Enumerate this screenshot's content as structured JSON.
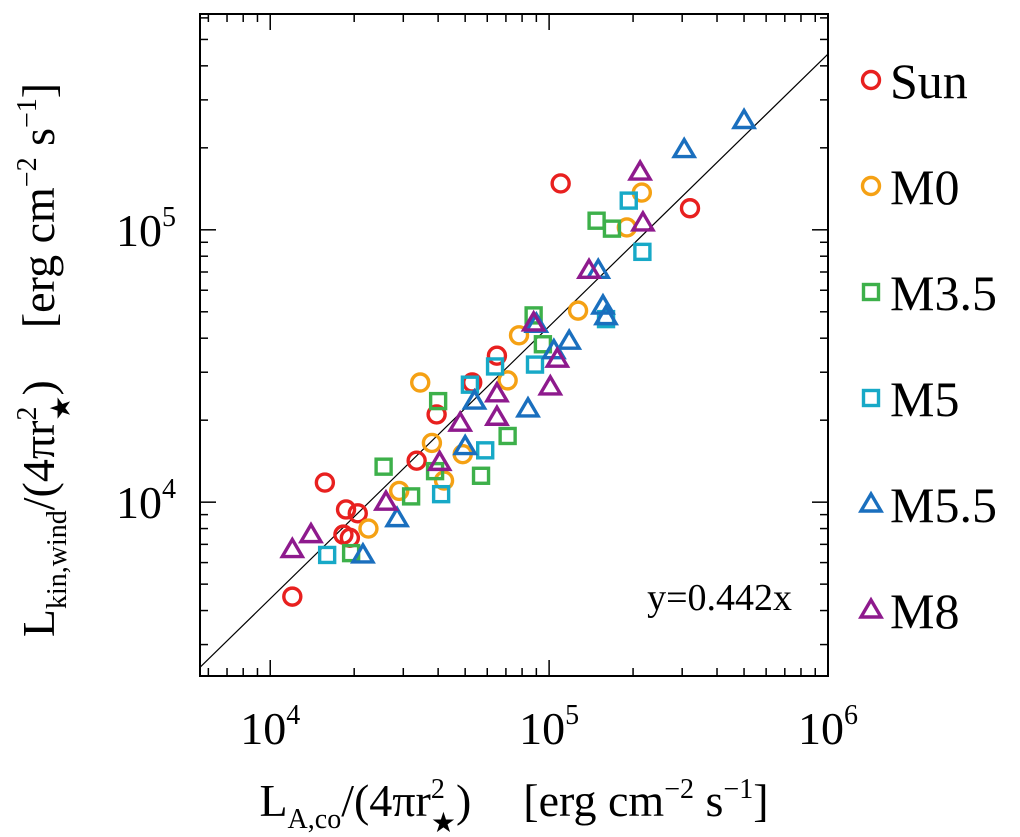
{
  "chart_data": {
    "type": "scatter",
    "xscale": "log",
    "yscale": "log",
    "xlim": [
      5600,
      1000000
    ],
    "ylim": [
      2300,
      620000
    ],
    "xticks": [
      {
        "value": 10000,
        "base": "10",
        "exp": "4"
      },
      {
        "value": 100000,
        "base": "10",
        "exp": "5"
      },
      {
        "value": 1000000,
        "base": "10",
        "exp": "6"
      }
    ],
    "yticks": [
      {
        "value": 10000,
        "base": "10",
        "exp": "4"
      },
      {
        "value": 100000,
        "base": "10",
        "exp": "5"
      }
    ],
    "xlabel": {
      "L": "L",
      "L_sub": "A,co",
      "mid": "/(4πr",
      "r_sup": "2",
      "r_sub": "★",
      "end": ")",
      "units": "[erg cm",
      "cm_exp": "−2",
      "s": " s",
      "s_exp": "−1",
      "close": "]"
    },
    "ylabel": {
      "L": "L",
      "L_sub": "kin,wind",
      "mid": "/(4πr",
      "r_sup": "2",
      "r_sub": "★",
      "end": ")",
      "units": "[erg cm",
      "cm_exp": "−2",
      "s": " s",
      "s_exp": "−1",
      "close": "]"
    },
    "fit": {
      "slope": 0.442,
      "label": "y=0.442x"
    },
    "series": [
      {
        "name": "Sun",
        "marker": "circle",
        "color": "#e8201f",
        "points": [
          [
            12000,
            4500
          ],
          [
            15700,
            11800
          ],
          [
            18700,
            9400
          ],
          [
            20600,
            9100
          ],
          [
            18300,
            7600
          ],
          [
            19300,
            7400
          ],
          [
            33500,
            14200
          ],
          [
            39500,
            21000
          ],
          [
            53000,
            27500
          ],
          [
            65000,
            34500
          ],
          [
            110000,
            148000
          ],
          [
            320000,
            120000
          ]
        ]
      },
      {
        "name": "M0",
        "marker": "circle",
        "color": "#f5a114",
        "points": [
          [
            22500,
            8000
          ],
          [
            29000,
            11000
          ],
          [
            34500,
            27500
          ],
          [
            42000,
            12000
          ],
          [
            38000,
            16500
          ],
          [
            49000,
            15000
          ],
          [
            71000,
            28000
          ],
          [
            78000,
            41000
          ],
          [
            127000,
            50500
          ],
          [
            190000,
            102000
          ],
          [
            215000,
            137000
          ]
        ]
      },
      {
        "name": "M3.5",
        "marker": "square",
        "color": "#3db04a",
        "points": [
          [
            19500,
            6500
          ],
          [
            25500,
            13500
          ],
          [
            32000,
            10500
          ],
          [
            40000,
            23500
          ],
          [
            39000,
            13000
          ],
          [
            57000,
            12500
          ],
          [
            71000,
            17500
          ],
          [
            88000,
            48500
          ],
          [
            95000,
            38000
          ],
          [
            148000,
            108000
          ],
          [
            168000,
            101000
          ]
        ]
      },
      {
        "name": "M5",
        "marker": "square",
        "color": "#17a9c7",
        "points": [
          [
            16000,
            6400
          ],
          [
            41000,
            10700
          ],
          [
            52000,
            27000
          ],
          [
            59000,
            15500
          ],
          [
            64000,
            31500
          ],
          [
            89000,
            32000
          ],
          [
            160000,
            47000
          ],
          [
            193000,
            128000
          ],
          [
            216000,
            83000
          ]
        ]
      },
      {
        "name": "M5.5",
        "marker": "triangle",
        "color": "#1a6fbe",
        "points": [
          [
            21500,
            6400
          ],
          [
            28500,
            8700
          ],
          [
            50000,
            16000
          ],
          [
            54000,
            23500
          ],
          [
            84000,
            22000
          ],
          [
            90000,
            45000
          ],
          [
            118000,
            39000
          ],
          [
            104000,
            36000
          ],
          [
            150000,
            71000
          ],
          [
            156000,
            52500
          ],
          [
            160000,
            48000
          ],
          [
            305000,
            197000
          ],
          [
            500000,
            252000
          ]
        ]
      },
      {
        "name": "M8",
        "marker": "triangle",
        "color": "#8e1a8d",
        "points": [
          [
            12000,
            6700
          ],
          [
            14000,
            7600
          ],
          [
            26000,
            10000
          ],
          [
            40500,
            14000
          ],
          [
            48000,
            19500
          ],
          [
            65000,
            20500
          ],
          [
            65000,
            25000
          ],
          [
            88000,
            45500
          ],
          [
            101000,
            26500
          ],
          [
            107000,
            33500
          ],
          [
            139000,
            71000
          ],
          [
            212000,
            163000
          ],
          [
            217000,
            106000
          ]
        ]
      }
    ]
  }
}
